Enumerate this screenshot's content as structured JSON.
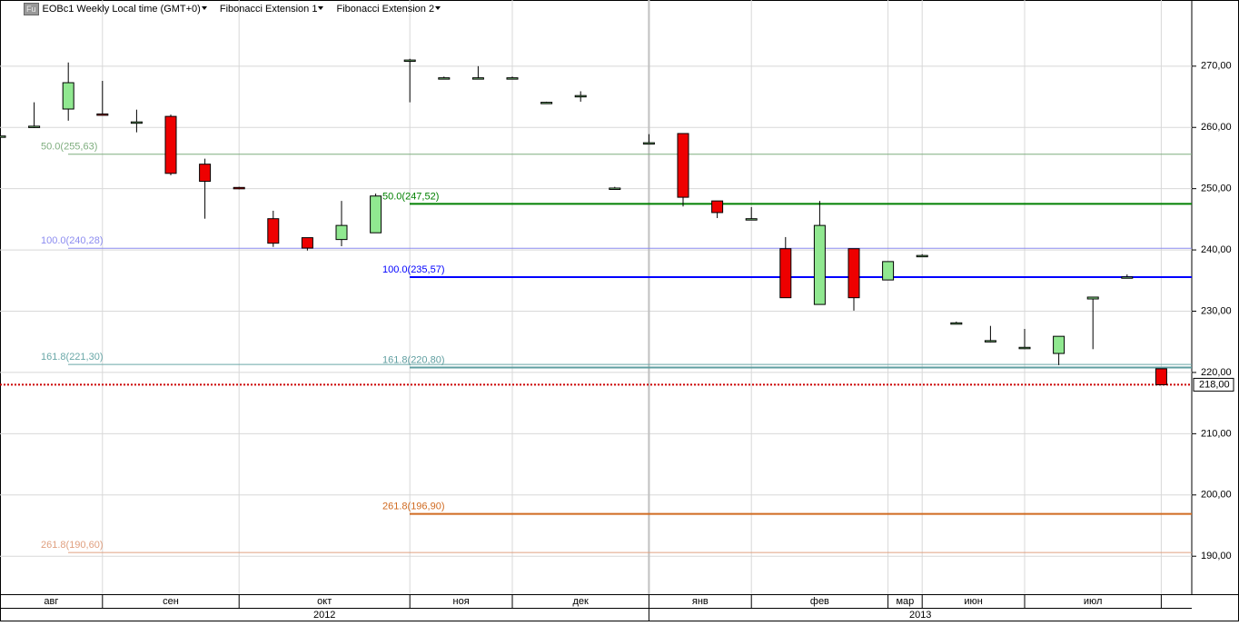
{
  "header": {
    "icon": "Fu",
    "instrument": "EOBc1 Weekly Local time (GMT+0)"
  },
  "chart_data": {
    "type": "candlestick",
    "categories": [
      "авг",
      "авг",
      "авг",
      "сен",
      "сен",
      "сен",
      "сен",
      "окт",
      "окт",
      "окт",
      "окт",
      "окт",
      "ноя",
      "ноя",
      "ноя",
      "дек",
      "дек",
      "дек",
      "дек",
      "янв",
      "янв",
      "янв",
      "фев",
      "фев",
      "фев",
      "фев",
      "мар",
      "июн",
      "июн",
      "июн",
      "июл",
      "июл",
      "июл",
      "июл",
      null
    ],
    "years": [
      2012,
      2012,
      2012,
      2012,
      2012,
      2012,
      2012,
      2012,
      2012,
      2012,
      2012,
      2012,
      2012,
      2012,
      2012,
      2012,
      2012,
      2012,
      2012,
      2013,
      2013,
      2013,
      2013,
      2013,
      2013,
      2013,
      2013,
      2013,
      2013,
      2013,
      2013,
      2013,
      2013,
      2013,
      2013
    ],
    "open": [
      258.5,
      260.0,
      263.0,
      262.2,
      260.8,
      261.8,
      254.0,
      250.2,
      245.1,
      242.0,
      241.7,
      242.8,
      270.8,
      268.0,
      268.0,
      268.0,
      264.0,
      265.0,
      250.0,
      257.4,
      259.0,
      248.0,
      245.0,
      240.2,
      231.1,
      240.2,
      235.1,
      239.0,
      228.0,
      225.0,
      224.0,
      223.1,
      232.0,
      235.5,
      220.6
    ],
    "high": [
      259.0,
      264.1,
      270.6,
      267.6,
      262.9,
      262.1,
      254.9,
      250.3,
      246.4,
      242.0,
      248.0,
      249.2,
      271.2,
      268.3,
      270.0,
      268.3,
      264.2,
      265.9,
      250.3,
      258.9,
      259.0,
      248.0,
      247.0,
      242.1,
      248.0,
      240.2,
      238.1,
      239.3,
      228.3,
      227.6,
      227.1,
      225.9,
      232.3,
      236.0,
      220.6
    ],
    "low": [
      258.3,
      259.9,
      261.1,
      262.0,
      259.2,
      252.2,
      245.1,
      249.9,
      240.5,
      239.9,
      240.6,
      242.8,
      264.1,
      267.9,
      267.9,
      267.9,
      263.9,
      264.2,
      249.9,
      257.3,
      247.1,
      245.2,
      244.9,
      232.2,
      231.1,
      230.1,
      235.1,
      238.9,
      227.9,
      224.9,
      223.8,
      221.2,
      223.8,
      235.4,
      218.0
    ],
    "close": [
      258.6,
      260.2,
      267.3,
      262.0,
      260.9,
      252.5,
      251.2,
      250.0,
      241.1,
      240.3,
      244.0,
      248.8,
      271.0,
      268.1,
      268.1,
      268.1,
      264.1,
      265.2,
      250.1,
      257.5,
      248.6,
      246.1,
      245.1,
      232.2,
      244.0,
      232.2,
      238.1,
      239.1,
      228.1,
      225.2,
      224.1,
      225.9,
      232.3,
      235.6,
      218.0
    ],
    "up_color": "#90e890",
    "down_color": "#ee0000",
    "ylim": [
      183.8,
      280.8
    ],
    "yticks": [
      {
        "value": 190,
        "label": "190,00"
      },
      {
        "value": 200,
        "label": "200,00"
      },
      {
        "value": 210,
        "label": "210,00"
      },
      {
        "value": 220,
        "label": "220,00"
      },
      {
        "value": 230,
        "label": "230,00"
      },
      {
        "value": 240,
        "label": "240,00"
      },
      {
        "value": 250,
        "label": "250,00"
      },
      {
        "value": 260,
        "label": "260,00"
      },
      {
        "value": 270,
        "label": "270,00"
      }
    ],
    "grid": true,
    "last_price": {
      "value": 218.0,
      "label": "218,00",
      "color": "#cc0000"
    },
    "fibonacci": [
      {
        "name": "Fibonacci Extension 1",
        "levels": [
          {
            "label": "50.0(255,63)",
            "value": 255.63,
            "color": "#7fae7f"
          },
          {
            "label": "100.0(240,28)",
            "value": 240.28,
            "color": "#8c8cf0"
          },
          {
            "label": "161.8(221,30)",
            "value": 221.3,
            "color": "#6aa8a8"
          },
          {
            "label": "261.8(190,60)",
            "value": 190.6,
            "color": "#e0a080"
          }
        ]
      },
      {
        "name": "Fibonacci Extension 2",
        "levels": [
          {
            "label": "50.0(247,52)",
            "value": 247.52,
            "color": "#008000"
          },
          {
            "label": "100.0(235,57)",
            "value": 235.57,
            "color": "#0000ff"
          },
          {
            "label": "161.8(220,80)",
            "value": 220.8,
            "color": "#5f9ea0"
          },
          {
            "label": "261.8(196,90)",
            "value": 196.9,
            "color": "#d06a20"
          }
        ]
      }
    ]
  }
}
